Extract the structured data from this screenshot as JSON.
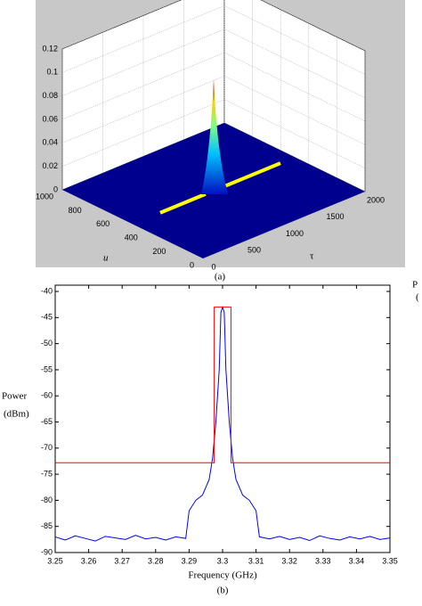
{
  "chart_data": [
    {
      "type": "surface",
      "caption": "(a)",
      "xlabel": "τ",
      "ylabel": "u",
      "xlim": [
        0,
        2000
      ],
      "xticks": [
        0,
        500,
        1000,
        1500,
        2000
      ],
      "ylim": [
        0,
        1000
      ],
      "yticks": [
        0,
        200,
        400,
        600,
        800,
        1000
      ],
      "zlim": [
        0,
        0.12
      ],
      "zticks": [
        0,
        0.02,
        0.04,
        0.06,
        0.08,
        0.1,
        0.12
      ],
      "grid": true,
      "floor_color": "#00008f",
      "peak": {
        "x": 1000,
        "y": 500,
        "z": 0.095
      },
      "marker_line": {
        "color": "#ffff00",
        "y": 500,
        "x": [
          340,
          900,
          1150,
          1824
        ]
      }
    },
    {
      "type": "line",
      "caption": "(b)",
      "xlabel": "Frequency (GHz)",
      "ylabel": [
        "Power",
        "(dBm)"
      ],
      "xlim": [
        3.25,
        3.35
      ],
      "xticks": [
        3.25,
        3.26,
        3.27,
        3.28,
        3.29,
        3.3,
        3.31,
        3.32,
        3.33,
        3.34,
        3.35
      ],
      "ylim": [
        -90,
        -38.8
      ],
      "yticks": [
        -90,
        -85,
        -80,
        -75,
        -70,
        -65,
        -60,
        -55,
        -50,
        -45,
        -40
      ],
      "series": [
        {
          "color": "#0000ff",
          "x": [
            3.25,
            3.253,
            3.256,
            3.259,
            3.262,
            3.265,
            3.268,
            3.271,
            3.274,
            3.277,
            3.28,
            3.283,
            3.286,
            3.289,
            3.29,
            3.292,
            3.294,
            3.296,
            3.297,
            3.298,
            3.299,
            3.2995,
            3.3,
            3.3005,
            3.301,
            3.302,
            3.303,
            3.304,
            3.306,
            3.308,
            3.31,
            3.311,
            3.314,
            3.317,
            3.32,
            3.323,
            3.326,
            3.329,
            3.332,
            3.335,
            3.338,
            3.341,
            3.344,
            3.347,
            3.35
          ],
          "values": [
            -87,
            -87.6,
            -86.8,
            -87.3,
            -87.8,
            -86.9,
            -87.2,
            -87.5,
            -86.7,
            -87.4,
            -87.1,
            -87.6,
            -87,
            -87.3,
            -82,
            -80,
            -79,
            -76,
            -72,
            -65,
            -55,
            -44,
            -43,
            -44,
            -55,
            -65,
            -72,
            -76,
            -79,
            -80,
            -82,
            -87,
            -87.4,
            -86.9,
            -87.5,
            -87.1,
            -87.7,
            -86.8,
            -87.3,
            -87.6,
            -87,
            -87.4,
            -86.9,
            -87.5,
            -87.2
          ]
        },
        {
          "color": "#ff0000",
          "x": [
            3.25,
            3.2975,
            3.2975,
            3.3025,
            3.3025,
            3.35
          ],
          "values": [
            -72.8,
            -72.8,
            -43,
            -43,
            -72.8,
            -72.8
          ]
        }
      ]
    },
    {
      "type": "text",
      "stray_text": [
        "P",
        "("
      ]
    }
  ]
}
